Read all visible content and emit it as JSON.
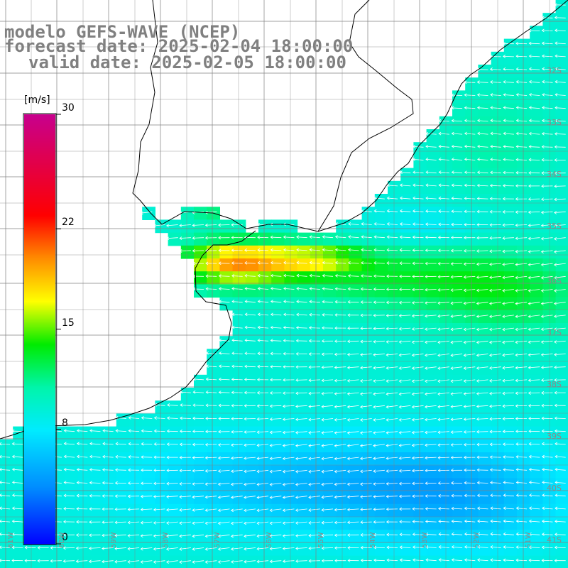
{
  "title": {
    "line1": "modelo GEFS-WAVE (NCEP)",
    "line2": "forecast date: 2025-02-04 18:00:00",
    "line3": "valid date: 2025-02-05 18:00:00"
  },
  "colorbar": {
    "unit": "[m/s]",
    "ticks": [
      {
        "value": 30,
        "label": "30"
      },
      {
        "value": 22,
        "label": "22"
      },
      {
        "value": 15,
        "label": "15"
      },
      {
        "value": 8,
        "label": "8"
      },
      {
        "value": 0,
        "label": "0"
      }
    ],
    "min": 0,
    "max": 30
  },
  "latitude_labels": [
    "32S",
    "33S",
    "34S",
    "35S",
    "36S",
    "37S",
    "38S",
    "39S",
    "40S",
    "41S"
  ],
  "longitude_labels": [
    "61W",
    "60W",
    "59W",
    "58W",
    "57W",
    "56W",
    "55W",
    "54W",
    "53W",
    "52W",
    "51W"
  ],
  "field": "wind speed",
  "colors": {
    "title": "#808080",
    "coast": "#000000",
    "grid": "#808080",
    "arrows": "#ffffff",
    "land": "#ffffff"
  }
}
